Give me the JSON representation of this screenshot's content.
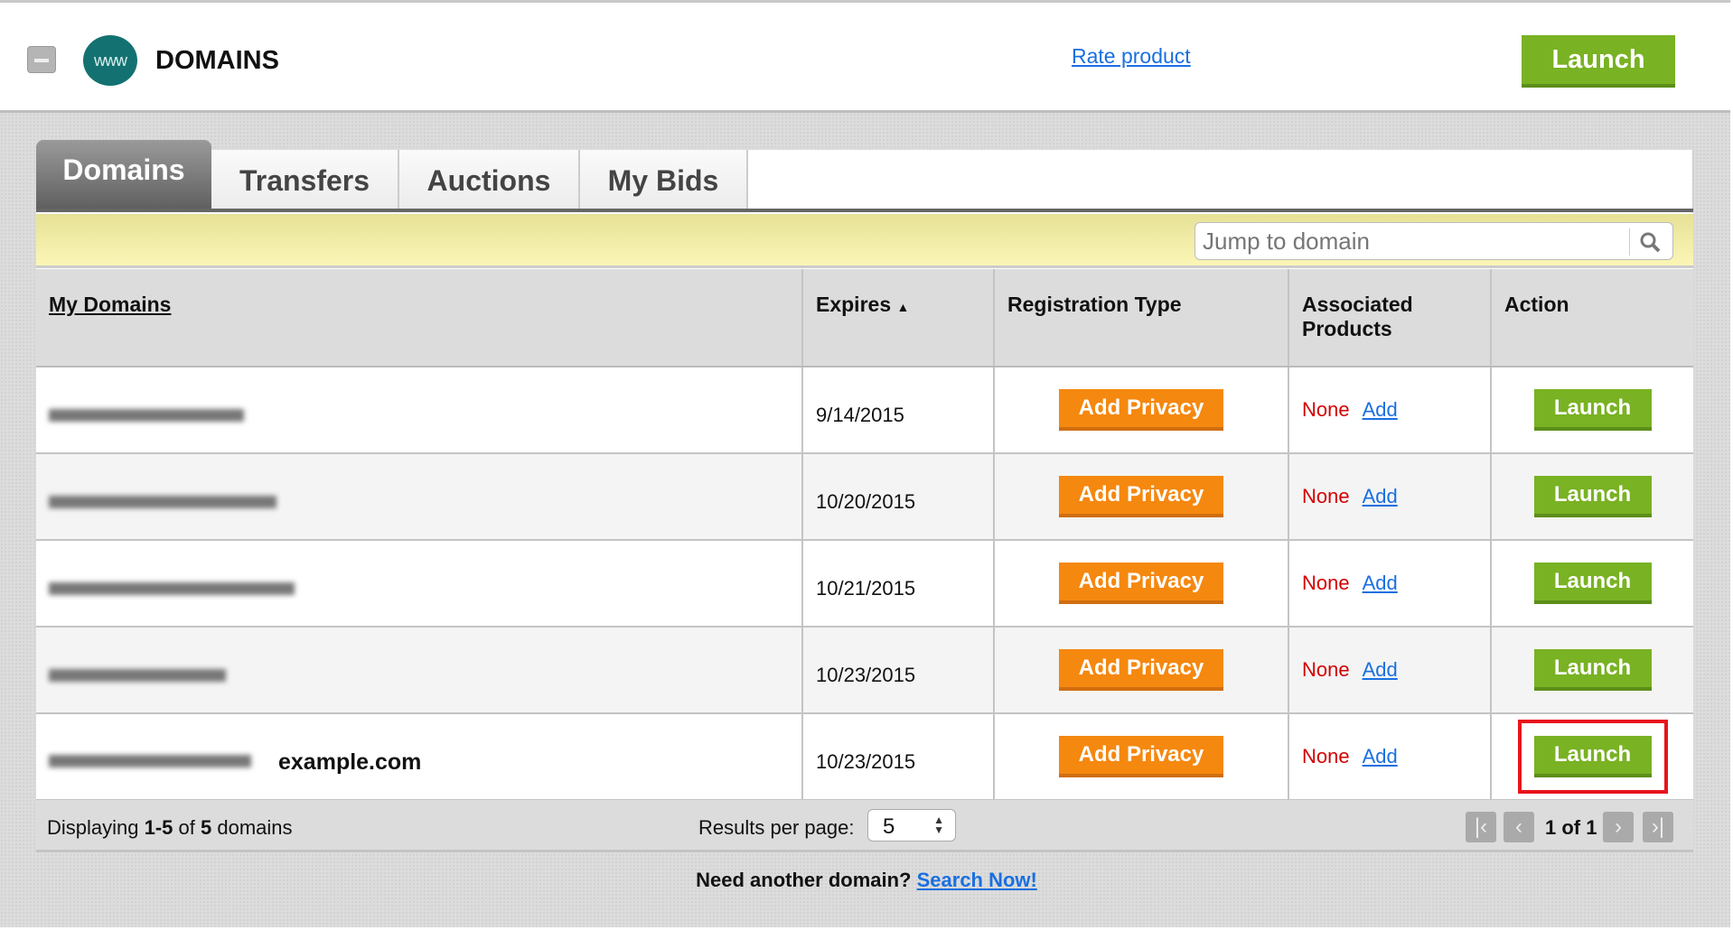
{
  "header": {
    "title": "DOMAINS",
    "logo_text": "www",
    "rate_link": "Rate product",
    "launch_label": "Launch"
  },
  "tabs": [
    {
      "label": "Domains",
      "active": true
    },
    {
      "label": "Transfers"
    },
    {
      "label": "Auctions"
    },
    {
      "label": "My Bids"
    }
  ],
  "search": {
    "placeholder": "Jump to domain",
    "value": ""
  },
  "table": {
    "columns": [
      "My Domains",
      "Expires",
      "Registration Type",
      "Associated Products",
      "Action"
    ],
    "sort_indicator": "▲",
    "rows": [
      {
        "domain": "",
        "expires": "9/14/2015",
        "reg": "Add Privacy",
        "none": "None",
        "add": "Add",
        "action": "Launch"
      },
      {
        "domain": "",
        "expires": "10/20/2015",
        "reg": "Add Privacy",
        "none": "None",
        "add": "Add",
        "action": "Launch"
      },
      {
        "domain": "",
        "expires": "10/21/2015",
        "reg": "Add Privacy",
        "none": "None",
        "add": "Add",
        "action": "Launch"
      },
      {
        "domain": "",
        "expires": "10/23/2015",
        "reg": "Add Privacy",
        "none": "None",
        "add": "Add",
        "action": "Launch"
      },
      {
        "domain": "example.com",
        "expires": "10/23/2015",
        "reg": "Add Privacy",
        "none": "None",
        "add": "Add",
        "action": "Launch",
        "highlighted": true
      }
    ]
  },
  "footer": {
    "displaying_prefix": "Displaying ",
    "range": "1-5",
    "of": " of ",
    "total": "5",
    "suffix": " domains",
    "results_label": "Results per page:",
    "per_page": "5",
    "page_text": "1 of 1"
  },
  "bottom": {
    "text": "Need another domain? ",
    "link": "Search Now!"
  },
  "colors": {
    "launch": "#79b223",
    "privacy": "#f5880f",
    "highlight": "#e8141b",
    "link": "#1a6fe0"
  }
}
